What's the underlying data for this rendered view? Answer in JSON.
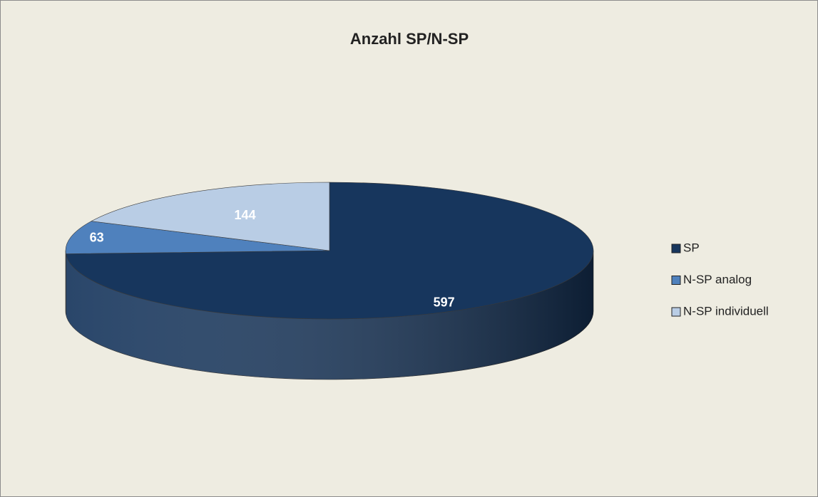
{
  "chart_data": {
    "type": "pie",
    "title": "Anzahl SP/N-SP",
    "categories": [
      "SP",
      "N-SP analog",
      "N-SP individuell"
    ],
    "values": [
      597,
      63,
      144
    ],
    "colors": [
      "#17365d",
      "#4f81bd",
      "#b9cde5"
    ]
  }
}
